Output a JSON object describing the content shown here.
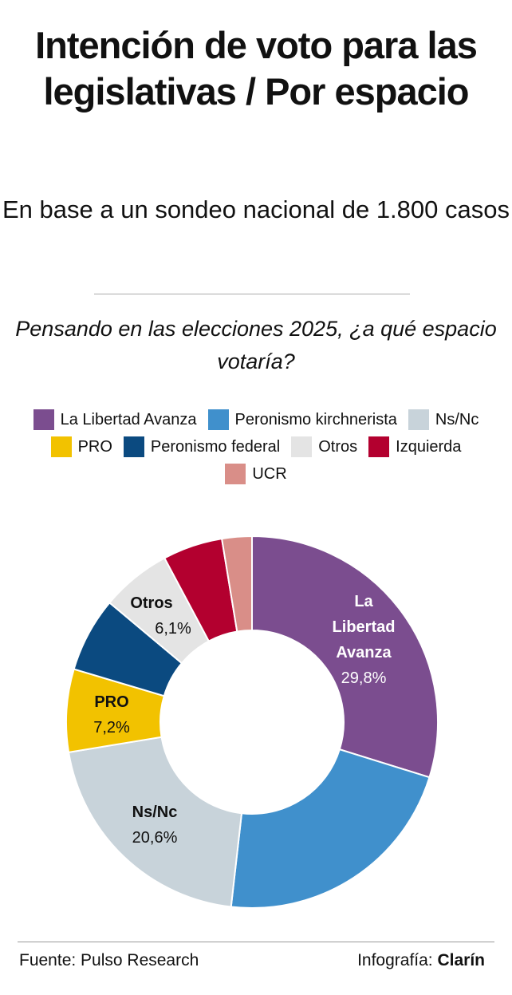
{
  "title": "Intención de voto para las legislativas / Por espacio",
  "subtitle": "En base a un sondeo nacional de 1.800 casos",
  "question": "Pensando en las elecciones 2025, ¿a qué espacio votaría?",
  "footer": {
    "source": "Fuente: Pulso Research",
    "credit_prefix": "Infografía:",
    "credit_brand": "Clarín"
  },
  "chart_data": {
    "type": "pie",
    "donut": true,
    "legend_position": "top",
    "series": [
      {
        "name": "La Libertad Avanza",
        "value": 29.8,
        "label": "29,8%",
        "color": "#7b4d8f"
      },
      {
        "name": "Peronismo kirchnerista",
        "value": 22.0,
        "color": "#4090cc"
      },
      {
        "name": "Ns/Nc",
        "value": 20.6,
        "label": "20,6%",
        "color": "#c8d3da"
      },
      {
        "name": "PRO",
        "value": 7.2,
        "label": "7,2%",
        "color": "#f2c200"
      },
      {
        "name": "Peronismo federal",
        "value": 6.5,
        "color": "#0b4a80"
      },
      {
        "name": "Otros",
        "value": 6.1,
        "label": "6,1%",
        "color": "#e4e4e4"
      },
      {
        "name": "Izquierda",
        "value": 5.2,
        "color": "#b3002f"
      },
      {
        "name": "UCR",
        "value": 2.6,
        "color": "#d98e88"
      }
    ],
    "legend_order": [
      0,
      1,
      2,
      3,
      4,
      5,
      6,
      7
    ]
  }
}
